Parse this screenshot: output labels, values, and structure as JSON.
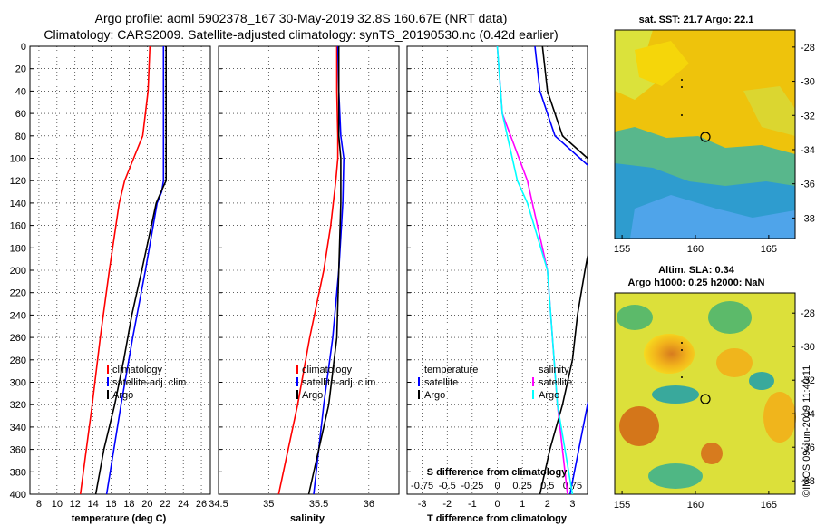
{
  "header": {
    "title_line1": "Argo profile: aoml 5902378_167 30-May-2019 32.8S 160.67E (NRT data)",
    "title_line2": "Climatology: CARS2009. Satellite-adjusted climatology: synTS_20190530.nc (0.42d earlier)"
  },
  "colors": {
    "climatology": "#ff0000",
    "satellite": "#0000ff",
    "argo": "#000000",
    "s_satellite": "#ff00ff",
    "s_argo": "#00ffff"
  },
  "depth_ticks": [
    "0",
    "20",
    "40",
    "60",
    "80",
    "100",
    "120",
    "140",
    "160",
    "180",
    "200",
    "220",
    "240",
    "260",
    "280",
    "300",
    "320",
    "340",
    "360",
    "380",
    "400"
  ],
  "chart_data": [
    {
      "type": "line",
      "title": "",
      "xlabel": "temperature (deg C)",
      "ylabel": "depth",
      "xlim": [
        7,
        27
      ],
      "ylim": [
        400,
        0
      ],
      "xticks": [
        "8",
        "10",
        "12",
        "14",
        "16",
        "18",
        "20",
        "22",
        "24",
        "26"
      ],
      "legend": [
        "climatology",
        "satellite-adj. clim.",
        "Argo"
      ],
      "series": [
        {
          "name": "climatology",
          "depth": [
            0,
            40,
            80,
            100,
            120,
            140,
            200,
            260,
            320,
            400
          ],
          "values": [
            20.3,
            20.1,
            19.5,
            18.5,
            17.5,
            16.9,
            15.8,
            14.8,
            13.9,
            12.6
          ]
        },
        {
          "name": "satellite-adj. clim.",
          "depth": [
            0,
            40,
            80,
            100,
            120,
            130,
            140,
            200,
            260,
            320,
            400
          ],
          "values": [
            21.8,
            21.8,
            21.8,
            21.8,
            21.8,
            21.6,
            21.1,
            19.8,
            18.4,
            17.1,
            15.5
          ]
        },
        {
          "name": "Argo",
          "depth": [
            0,
            40,
            80,
            100,
            120,
            125,
            140,
            200,
            240,
            280,
            320,
            360,
            400
          ],
          "values": [
            22.1,
            22.1,
            22.1,
            22.1,
            22.1,
            21.8,
            21.0,
            19.4,
            18.3,
            17.4,
            16.4,
            15.2,
            14.3
          ]
        }
      ]
    },
    {
      "type": "line",
      "title": "",
      "xlabel": "salinity",
      "ylabel": "depth",
      "xlim": [
        34.5,
        36.3
      ],
      "ylim": [
        400,
        0
      ],
      "xticks": [
        "34.5",
        "35",
        "35.5",
        "36"
      ],
      "legend": [
        "climatology",
        "satellite-adj. clim.",
        "Argo"
      ],
      "series": [
        {
          "name": "climatology",
          "depth": [
            0,
            40,
            80,
            100,
            120,
            160,
            200,
            260,
            320,
            400
          ],
          "values": [
            35.68,
            35.68,
            35.69,
            35.69,
            35.67,
            35.62,
            35.55,
            35.41,
            35.29,
            35.1
          ],
          "label": "climatology"
        },
        {
          "name": "satellite-adj. clim.",
          "depth": [
            0,
            40,
            80,
            100,
            140,
            200,
            260,
            320,
            400
          ],
          "values": [
            35.69,
            35.7,
            35.72,
            35.75,
            35.74,
            35.7,
            35.64,
            35.55,
            35.45
          ]
        },
        {
          "name": "Argo",
          "depth": [
            0,
            40,
            80,
            100,
            140,
            200,
            260,
            320,
            360,
            400
          ],
          "values": [
            35.7,
            35.7,
            35.7,
            35.72,
            35.72,
            35.7,
            35.68,
            35.6,
            35.5,
            35.4
          ]
        }
      ]
    },
    {
      "type": "line",
      "title": "",
      "xlabel": "T difference from climatology",
      "xlabel_top": "S difference from climatology",
      "ylabel": "depth",
      "xlim": [
        -3.6,
        3.6
      ],
      "ylim": [
        400,
        0
      ],
      "xticks": [
        "-3",
        "-2",
        "-1",
        "0",
        "1",
        "2",
        "3"
      ],
      "xticks_top": [
        "-0.75",
        "-0.5",
        "-0.25",
        "0",
        "0.25",
        "0.5",
        "0.75"
      ],
      "legend_left": [
        "temperature",
        "satellite",
        "Argo"
      ],
      "legend_right": [
        "salinity",
        "satellite",
        "Argo"
      ],
      "series": [
        {
          "name": "T satellite",
          "depth": [
            0,
            40,
            80,
            100,
            120,
            140,
            200,
            260,
            320,
            400
          ],
          "values": [
            1.5,
            1.7,
            2.3,
            3.3,
            4.3,
            4.7,
            4.5,
            4.2,
            3.6,
            2.9
          ]
        },
        {
          "name": "T Argo",
          "depth": [
            0,
            40,
            80,
            100,
            120,
            140,
            200,
            240,
            280,
            320,
            360,
            400
          ],
          "values": [
            1.8,
            2.0,
            2.6,
            3.6,
            4.5,
            4.0,
            3.5,
            3.2,
            3.0,
            2.6,
            2.1,
            1.7
          ]
        },
        {
          "name": "S satellite",
          "depth": [
            0,
            60,
            120,
            140,
            200,
            260,
            320,
            400
          ],
          "values": [
            0.0,
            0.05,
            0.3,
            0.35,
            0.5,
            0.55,
            0.6,
            0.7
          ]
        },
        {
          "name": "S Argo",
          "depth": [
            0,
            60,
            120,
            140,
            200,
            260,
            320,
            400
          ],
          "values": [
            0.0,
            0.05,
            0.2,
            0.3,
            0.5,
            0.55,
            0.6,
            0.75
          ]
        }
      ]
    }
  ],
  "maps": {
    "sst": {
      "title": "sat. SST: 21.7 Argo: 22.1",
      "yticks": [
        "-28",
        "-30",
        "-32",
        "-34",
        "-36",
        "-38"
      ],
      "xticks": [
        "155",
        "160",
        "165"
      ]
    },
    "sla": {
      "title1": "Altim. SLA: 0.34",
      "title2": "Argo h1000: 0.25 h2000: NaN",
      "yticks": [
        "-28",
        "-30",
        "-32",
        "-34",
        "-36",
        "-38"
      ],
      "xticks": [
        "155",
        "160",
        "165"
      ]
    }
  },
  "credit": "©IMOS 09-Jun-2019 11:40:11"
}
